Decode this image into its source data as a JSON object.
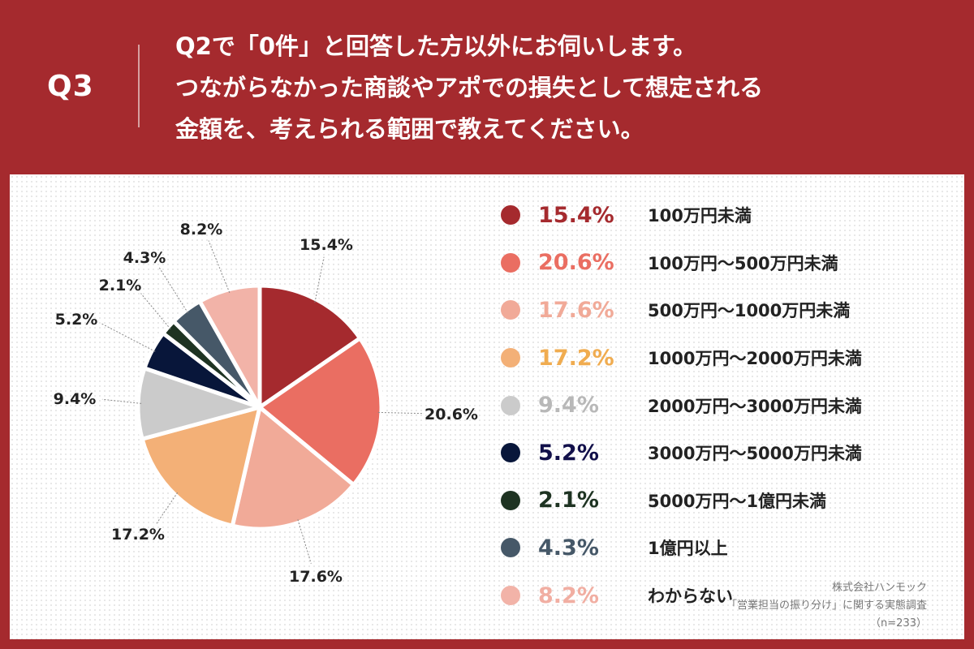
{
  "question": {
    "number": "Q3",
    "lines": [
      "Q2で「0件」と回答した方以外にお伺いします。",
      "つながらなかった商談やアポでの損失として想定される",
      "金額を、考えられる範囲で教えてください。"
    ]
  },
  "chart_data": {
    "type": "pie",
    "title": "",
    "unit": "%",
    "series": [
      {
        "label": "100万円未満",
        "value": 15.4,
        "value_label": "15.4%",
        "color": "#a52a2e"
      },
      {
        "label": "100万円〜500万円未満",
        "value": 20.6,
        "value_label": "20.6%",
        "color": "#ea6e62"
      },
      {
        "label": "500万円〜1000万円未満",
        "value": 17.6,
        "value_label": "17.6%",
        "color": "#f1aa98"
      },
      {
        "label": "1000万円〜2000万円未満",
        "value": 17.2,
        "value_label": "17.2%",
        "color": "#f3b077"
      },
      {
        "label": "2000万円〜3000万円未満",
        "value": 9.4,
        "value_label": "9.4%",
        "color": "#cbcbcb"
      },
      {
        "label": "3000万円〜5000万円未満",
        "value": 5.2,
        "value_label": "5.2%",
        "color": "#08163a"
      },
      {
        "label": "5000万円〜1億円未満",
        "value": 2.1,
        "value_label": "2.1%",
        "color": "#1e3322"
      },
      {
        "label": "1億円以上",
        "value": 4.3,
        "value_label": "4.3%",
        "color": "#465868"
      },
      {
        "label": "わからない",
        "value": 8.2,
        "value_label": "8.2%",
        "color": "#f2b3a8"
      }
    ],
    "legend_position": "right",
    "legend_pct_colors": [
      "#a52a2e",
      "#ea6e62",
      "#f1aa98",
      "#f0ac50",
      "#b8b8b8",
      "#12104a",
      "#1e3322",
      "#465868",
      "#f1aea2"
    ]
  },
  "source": {
    "company": "株式会社ハンモック",
    "survey": "「営業担当の振り分け」に関する実態調査",
    "sample": "（n=233）"
  }
}
